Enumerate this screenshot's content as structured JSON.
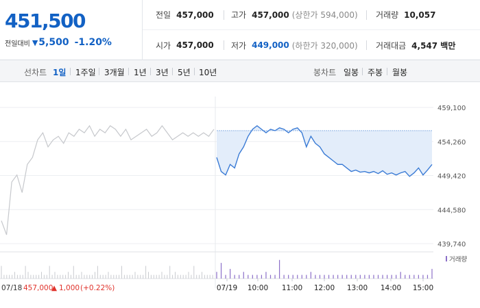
{
  "quote": {
    "current_price": "451,500",
    "change_label": "전일대비",
    "change_icon": "down-triangle-icon",
    "change_amount": "5,500",
    "change_percent": "-1.20%",
    "color_down": "#1261c4",
    "color_up": "#e0322b"
  },
  "stats": {
    "prev_close_label": "전일",
    "prev_close": "457,000",
    "high_label": "고가",
    "high": "457,000",
    "upper_limit": "(상한가 594,000)",
    "volume_label": "거래량",
    "volume": "10,057",
    "open_label": "시가",
    "open": "457,000",
    "low_label": "저가",
    "low": "449,000",
    "lower_limit": "(하한가 320,000)",
    "trade_value_label": "거래대금",
    "trade_value": "4,547 백만"
  },
  "toolbar": {
    "line_chart_label": "선차트",
    "periods": [
      "1일",
      "1주일",
      "3개월",
      "1년",
      "3년",
      "5년",
      "10년"
    ],
    "active_period": "1일",
    "candle_chart_label": "봉차트",
    "candle_periods": [
      "일봉",
      "주봉",
      "월봉"
    ]
  },
  "chart": {
    "y_ticks": [
      "459,100",
      "454,260",
      "449,420",
      "444,580",
      "439,740"
    ],
    "time_labels": [
      "07/19",
      "10:00",
      "11:00",
      "12:00",
      "13:00",
      "14:00",
      "15:00"
    ],
    "prev_day_label": "07/18",
    "prev_day_close": "457,000",
    "prev_day_change_icon": "up-triangle-icon",
    "prev_day_change": "1,000",
    "prev_day_change_pct": "(+0.22%)",
    "volume_legend": "거래량",
    "line_color": "#3a7bd5",
    "fill_color": "#e3edfa",
    "prev_line_color": "#c6c8cc"
  },
  "chart_data": {
    "type": "line",
    "ylim": [
      439740,
      459100
    ],
    "y_ticks": [
      459100,
      454260,
      449420,
      444580,
      439740
    ],
    "x_labels": [
      "07/19",
      "10:00",
      "11:00",
      "12:00",
      "13:00",
      "14:00",
      "15:00"
    ],
    "series": [
      {
        "values": [
          452000,
          450000,
          449500,
          451000,
          450500,
          452500,
          453500,
          455000,
          456000,
          456500,
          456000,
          455500,
          456000,
          455800,
          456200,
          456000,
          455500,
          456000,
          456200,
          455500,
          453500,
          455000,
          454000,
          453500,
          452500,
          452000,
          451500,
          451000,
          451000,
          450500,
          450000,
          450200,
          449900,
          450000,
          449800,
          450000,
          449700,
          450100,
          449600,
          449800,
          449500,
          449800,
          450000,
          449300,
          449800,
          450500,
          449500,
          450200,
          451000
        ]
      }
    ],
    "prev_day_series": [
      443000,
      441000,
      448500,
      449500,
      447000,
      451000,
      452000,
      454500,
      455500,
      453500,
      454500,
      455000,
      454000,
      455500,
      455000,
      456000,
      455500,
      456500,
      455000,
      456000,
      455500,
      456500,
      456000,
      455000,
      456000,
      454500,
      455000,
      455500,
      456000,
      455000,
      455500,
      456500,
      455500,
      454500,
      455000,
      455500,
      455000,
      455500,
      455000,
      455500,
      455000,
      456000
    ],
    "volume_series": [
      2,
      5,
      1,
      3,
      1,
      1,
      2,
      1,
      1,
      1,
      1,
      2,
      1,
      1,
      6,
      1,
      1,
      1,
      1,
      1,
      1,
      2,
      1,
      1,
      1,
      1,
      1,
      1,
      1,
      1,
      1,
      1,
      1,
      1,
      1,
      1,
      1,
      1,
      1,
      1,
      1,
      2,
      1,
      1,
      1,
      1,
      1,
      1,
      3
    ]
  }
}
